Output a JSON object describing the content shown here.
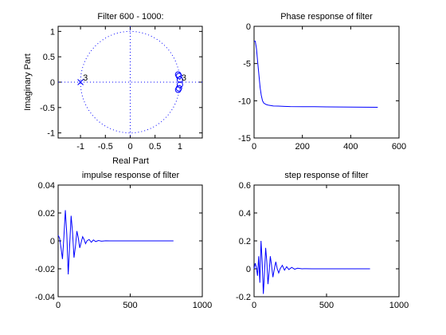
{
  "colors": {
    "data": "#0000ff",
    "axes": "#000000",
    "background": "#ffffff"
  },
  "chart_data": [
    {
      "id": "zplane",
      "type": "scatter",
      "title": "Filter 600 - 1000:",
      "xlabel": "Real Part",
      "ylabel": "Imaginary Part",
      "xlim": [
        -1.45,
        1.45
      ],
      "ylim": [
        -1.1,
        1.1
      ],
      "xticks": [
        -1,
        -0.5,
        0,
        0.5,
        1
      ],
      "xtick_labels": [
        "-1",
        "-0.5",
        "0",
        "0.5",
        "1"
      ],
      "yticks": [
        -1,
        -0.5,
        0,
        0.5,
        1
      ],
      "ytick_labels": [
        "-1",
        "-0.5",
        "0",
        "0.5",
        "1"
      ],
      "unit_circle": true,
      "zero_lines": true,
      "poles": [
        {
          "x": -1,
          "y": 0,
          "multiplicity_label": "3"
        }
      ],
      "zeros": [
        {
          "x": 0.98,
          "y": 0.12
        },
        {
          "x": 0.98,
          "y": -0.12
        },
        {
          "x": 1.0,
          "y": 0.05
        },
        {
          "x": 1.0,
          "y": -0.05
        },
        {
          "x": 0.965,
          "y": 0.15
        },
        {
          "x": 0.965,
          "y": -0.15
        }
      ],
      "zero_multiplicity_label": "3"
    },
    {
      "id": "phase",
      "type": "line",
      "title": "Phase response of filter",
      "xlabel": "",
      "ylabel": "",
      "xlim": [
        0,
        600
      ],
      "ylim": [
        -15,
        0
      ],
      "xticks": [
        0,
        200,
        400,
        600
      ],
      "xtick_labels": [
        "0",
        "200",
        "400",
        "600"
      ],
      "yticks": [
        -15,
        -10,
        -5,
        0
      ],
      "ytick_labels": [
        "-15",
        "-10",
        "-5",
        "0"
      ],
      "x": [
        0,
        5,
        10,
        15,
        20,
        25,
        30,
        35,
        40,
        50,
        60,
        70,
        80,
        100,
        125,
        150,
        200,
        250,
        300,
        350,
        400,
        450,
        512
      ],
      "y": [
        -2.0,
        -2.0,
        -3.0,
        -4.8,
        -6.5,
        -8.2,
        -9.3,
        -10.0,
        -10.3,
        -10.5,
        -10.6,
        -10.65,
        -10.7,
        -10.72,
        -10.75,
        -10.78,
        -10.8,
        -10.8,
        -10.82,
        -10.83,
        -10.85,
        -10.86,
        -10.87
      ]
    },
    {
      "id": "impulse",
      "type": "line",
      "title": "impulse response of filter",
      "xlabel": "",
      "ylabel": "",
      "xlim": [
        0,
        1000
      ],
      "ylim": [
        -0.04,
        0.04
      ],
      "xticks": [
        0,
        500,
        1000
      ],
      "xtick_labels": [
        "0",
        "500",
        "1000"
      ],
      "yticks": [
        -0.04,
        -0.02,
        0,
        0.02,
        0.04
      ],
      "ytick_labels": [
        "-0.04",
        "-0.02",
        "0",
        "0.02",
        "0.04"
      ],
      "x": [
        0,
        10,
        20,
        30,
        40,
        50,
        60,
        70,
        80,
        90,
        100,
        110,
        120,
        130,
        140,
        150,
        160,
        170,
        180,
        190,
        200,
        215,
        230,
        245,
        260,
        280,
        300,
        330,
        360,
        400,
        450,
        500,
        600,
        700,
        800
      ],
      "y": [
        0.004,
        0.002,
        -0.005,
        -0.013,
        0.003,
        0.022,
        0.005,
        -0.024,
        -0.003,
        0.018,
        0.006,
        -0.012,
        -0.004,
        0.007,
        0.002,
        -0.005,
        -0.001,
        0.003,
        0.001,
        -0.002,
        0.0,
        0.001,
        -0.001,
        0.0007,
        -0.0005,
        0.0003,
        -0.0002,
        0.0001,
        0.0,
        0.0,
        0.0,
        0.0,
        0.0,
        0.0,
        0.0
      ]
    },
    {
      "id": "step",
      "type": "line",
      "title": "step response of filter",
      "xlabel": "",
      "ylabel": "",
      "xlim": [
        0,
        1000
      ],
      "ylim": [
        -0.2,
        0.6
      ],
      "xticks": [
        0,
        500,
        1000
      ],
      "xtick_labels": [
        "0",
        "500",
        "1000"
      ],
      "yticks": [
        -0.2,
        0,
        0.2,
        0.4,
        0.6
      ],
      "ytick_labels": [
        "-0.2",
        "0",
        "0.2",
        "0.4",
        "0.6"
      ],
      "x": [
        0,
        8,
        16,
        24,
        32,
        40,
        48,
        56,
        64,
        72,
        80,
        88,
        96,
        104,
        112,
        120,
        130,
        140,
        150,
        160,
        170,
        180,
        195,
        210,
        225,
        240,
        260,
        280,
        300,
        330,
        360,
        400,
        500,
        600,
        700,
        800
      ],
      "y": [
        0.0,
        0.04,
        0.01,
        -0.05,
        0.09,
        -0.1,
        0.2,
        0.05,
        -0.18,
        -0.03,
        0.15,
        0.05,
        -0.11,
        -0.02,
        0.09,
        0.03,
        -0.06,
        0.0,
        0.05,
        0.0,
        -0.03,
        0.0,
        0.025,
        -0.01,
        0.015,
        -0.005,
        0.01,
        -0.003,
        0.004,
        0.0,
        0.001,
        0.0,
        0.0,
        0.0,
        0.0,
        0.0
      ]
    }
  ]
}
